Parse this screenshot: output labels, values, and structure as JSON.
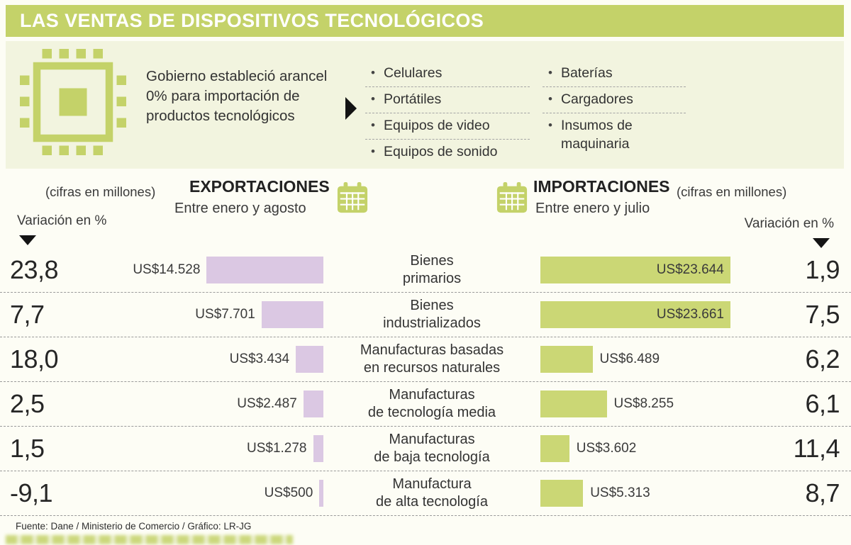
{
  "colors": {
    "accent": "#c4d269",
    "import_bar": "#cbd775",
    "export_bar": "#dbc8e3",
    "text_dark": "#3a3a3a",
    "band_bg": "#f2f4df"
  },
  "header": {
    "title": "LAS VENTAS DE DISPOSITIVOS TECNOLÓGICOS"
  },
  "intro": {
    "description": "Gobierno estableció arancel 0% para importación de productos tecnológicos",
    "items_left": [
      "Celulares",
      "Portátiles",
      "Equipos de video",
      "Equipos de sonido"
    ],
    "items_right": [
      "Baterías",
      "Cargadores",
      "Insumos de maquinaria"
    ]
  },
  "icons": {
    "chip": "chip-icon",
    "calendar": "calendar-icon",
    "arrow_right": "right-triangle-icon",
    "arrow_down": "down-triangle-icon"
  },
  "exports_header": {
    "units": "(cifras en millones)",
    "title": "EXPORTACIONES",
    "period": "Entre enero y agosto",
    "variation_label": "Variación en %"
  },
  "imports_header": {
    "title": "IMPORTACIONES",
    "units": "(cifras en millones)",
    "period": "Entre enero y julio",
    "variation_label": "Variación en %"
  },
  "rows": [
    {
      "var_left": "23,8",
      "export_label": "US$14.528",
      "export_value": 14528,
      "cat_line1": "Bienes",
      "cat_line2": "primarios",
      "import_value": 23644,
      "import_label": "US$23.644",
      "var_right": "1,9"
    },
    {
      "var_left": "7,7",
      "export_label": "US$7.701",
      "export_value": 7701,
      "cat_line1": "Bienes",
      "cat_line2": "industrializados",
      "import_value": 23661,
      "import_label": "US$23.661",
      "var_right": "7,5"
    },
    {
      "var_left": "18,0",
      "export_label": "US$3.434",
      "export_value": 3434,
      "cat_line1": "Manufacturas basadas",
      "cat_line2": "en recursos naturales",
      "import_value": 6489,
      "import_label": "US$6.489",
      "var_right": "6,2"
    },
    {
      "var_left": "2,5",
      "export_label": "US$2.487",
      "export_value": 2487,
      "cat_line1": "Manufacturas",
      "cat_line2": "de tecnología media",
      "import_value": 8255,
      "import_label": "US$8.255",
      "var_right": "6,1"
    },
    {
      "var_left": "1,5",
      "export_label": "US$1.278",
      "export_value": 1278,
      "cat_line1": "Manufacturas",
      "cat_line2": "de baja tecnología",
      "import_value": 3602,
      "import_label": "US$3.602",
      "var_right": "11,4"
    },
    {
      "var_left": "-9,1",
      "export_label": "US$500",
      "export_value": 500,
      "cat_line1": "Manufactura",
      "cat_line2": "de alta tecnología",
      "import_value": 5313,
      "import_label": "US$5.313",
      "var_right": "8,7"
    }
  ],
  "chart_data": {
    "type": "bar",
    "title": "LAS VENTAS DE DISPOSITIVOS TECNOLÓGICOS",
    "categories": [
      "Bienes primarios",
      "Bienes industrializados",
      "Manufacturas basadas en recursos naturales",
      "Manufacturas de tecnología media",
      "Manufacturas de baja tecnología",
      "Manufactura de alta tecnología"
    ],
    "series": [
      {
        "name": "Exportaciones (US$ millones)",
        "period": "Entre enero y agosto",
        "values": [
          14528,
          7701,
          3434,
          2487,
          1278,
          500
        ],
        "variation_pct": [
          23.8,
          7.7,
          18.0,
          2.5,
          1.5,
          -9.1
        ],
        "color": "#dbc8e3"
      },
      {
        "name": "Importaciones (US$ millones)",
        "period": "Entre enero y julio",
        "values": [
          23644,
          23661,
          6489,
          8255,
          3602,
          5313
        ],
        "variation_pct": [
          1.9,
          7.5,
          6.2,
          6.1,
          11.4,
          8.7
        ],
        "color": "#cbd775"
      }
    ],
    "layout": {
      "orientation": "horizontal",
      "mirrored_bars": true,
      "value_labels": true,
      "grid": false,
      "legend_position": "none"
    }
  },
  "footer": {
    "source": "Fuente: Dane / Ministerio de Comercio / Gráfico: LR-JG"
  }
}
